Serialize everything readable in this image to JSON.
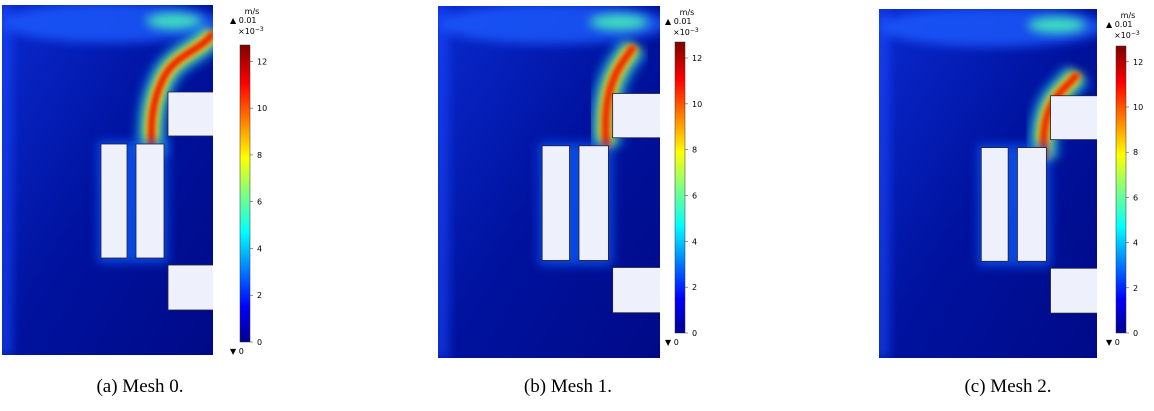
{
  "panels": [
    {
      "caption": "(a) Mesh 0.",
      "colorbar": {
        "unit": "m/s",
        "max_label": "▲ 0.01",
        "multiplier_base": "×10",
        "multiplier_exponent": "−3",
        "min_label": "▼ 0",
        "ticks": [
          0,
          2,
          4,
          6,
          8,
          10,
          12
        ],
        "limits": [
          0,
          12.7
        ]
      }
    },
    {
      "caption": "(b) Mesh 1.",
      "colorbar": {
        "unit": "m/s",
        "max_label": "▲ 0.01",
        "multiplier_base": "×10",
        "multiplier_exponent": "−3",
        "min_label": "▼ 0",
        "ticks": [
          0,
          2,
          4,
          6,
          8,
          10,
          12
        ],
        "limits": [
          0,
          12.7
        ]
      }
    },
    {
      "caption": "(c) Mesh 2.",
      "colorbar": {
        "unit": "m/s",
        "max_label": "▲ 0.01",
        "multiplier_base": "×10",
        "multiplier_exponent": "−3",
        "min_label": "▼ 0",
        "ticks": [
          0,
          2,
          4,
          6,
          8,
          10,
          12
        ],
        "limits": [
          0,
          12.7
        ]
      }
    }
  ]
}
